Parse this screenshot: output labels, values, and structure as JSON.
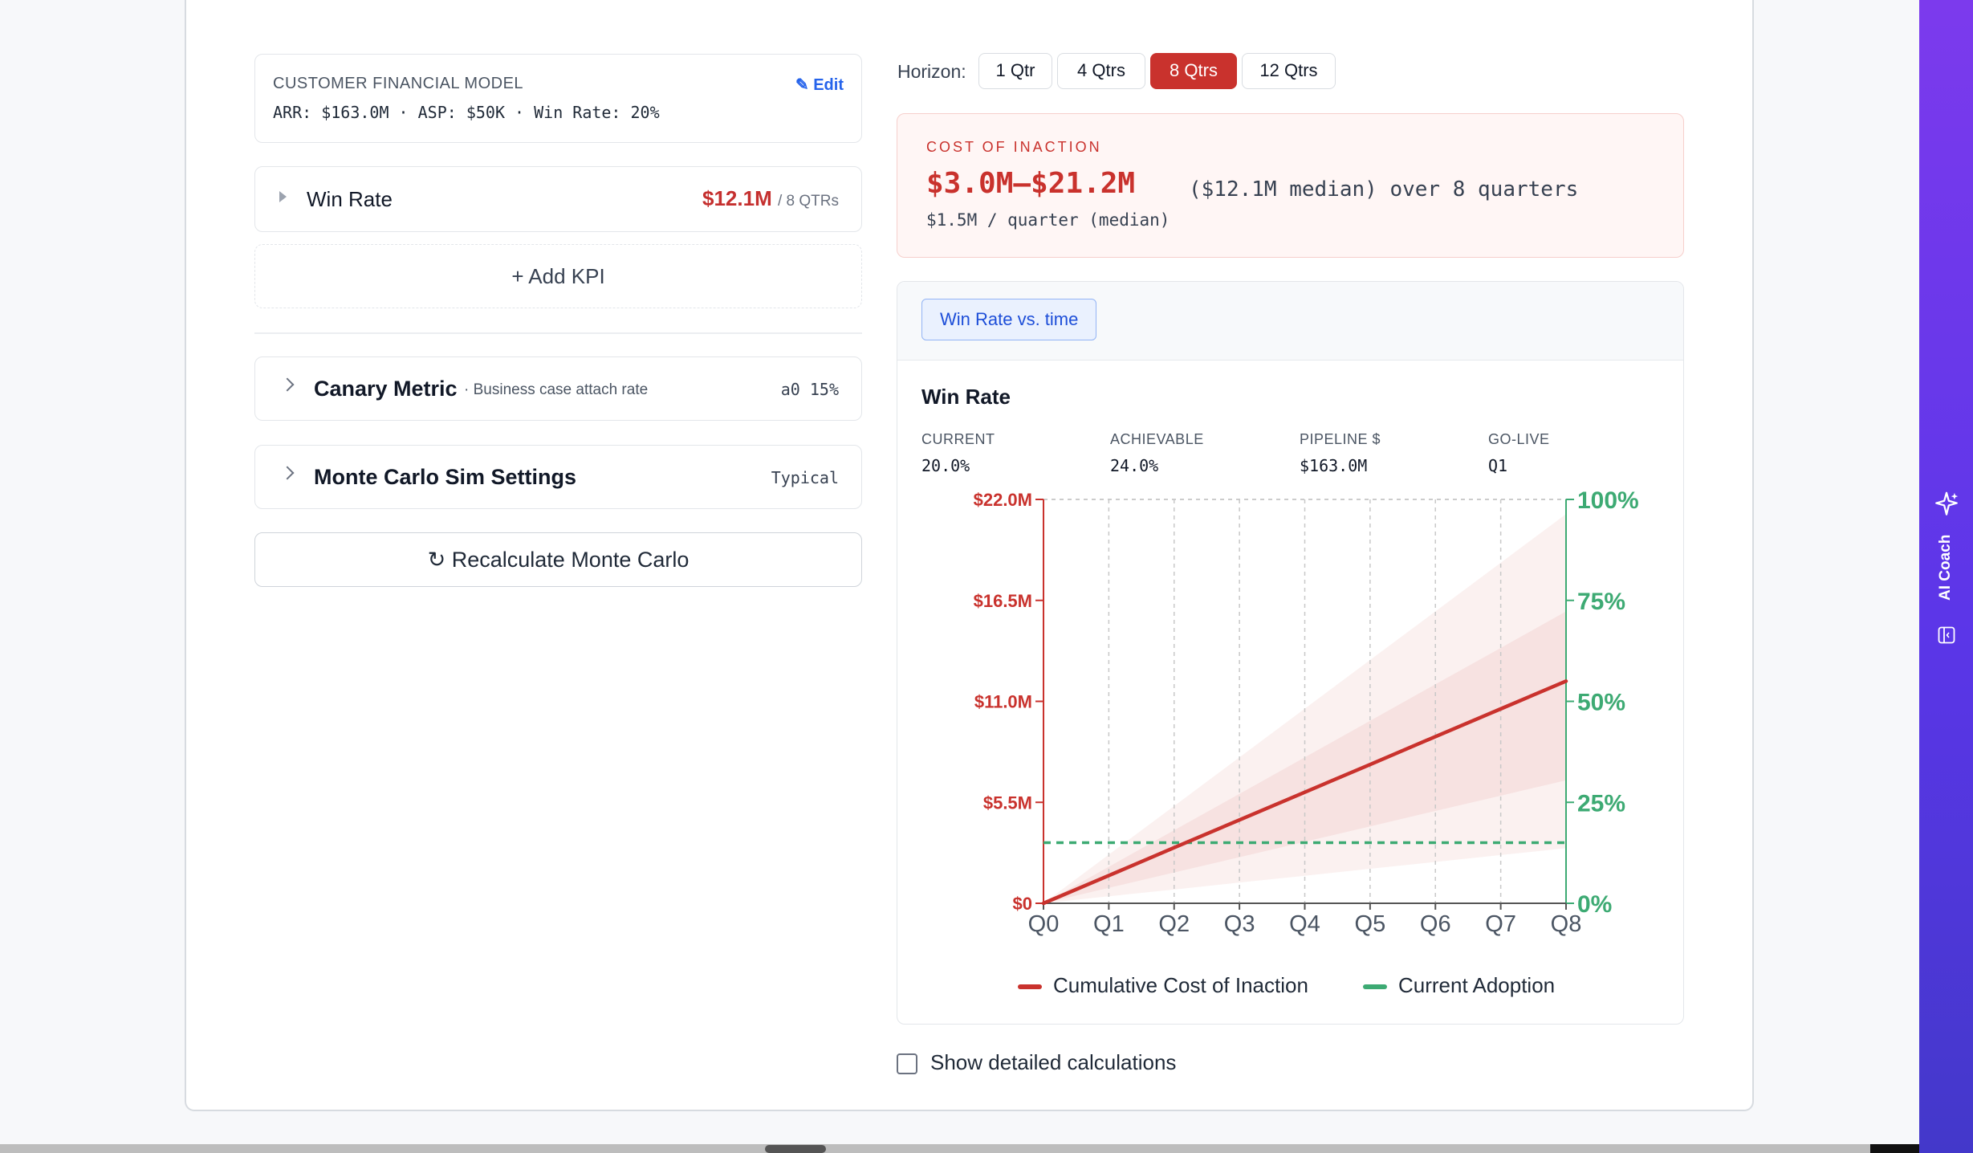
{
  "financial_model": {
    "title": "CUSTOMER FINANCIAL MODEL",
    "edit_label": "✎ Edit",
    "summary": "ARR: $163.0M · ASP: $50K · Win Rate: 20%"
  },
  "kpi": {
    "name": "Win Rate",
    "value": "$12.1M",
    "period": "/ 8 QTRs"
  },
  "add_kpi_label": "+ Add KPI",
  "canary": {
    "title": "Canary Metric",
    "subtitle": "· Business case attach rate",
    "value": "a0 15%"
  },
  "monte_carlo": {
    "title": "Monte Carlo Sim Settings",
    "value": "Typical"
  },
  "recalc_label": "↻ Recalculate Monte Carlo",
  "horizon": {
    "label": "Horizon:",
    "options": [
      "1 Qtr",
      "4 Qtrs",
      "8 Qtrs",
      "12 Qtrs"
    ],
    "selected": "8 Qtrs"
  },
  "cost_of_inaction": {
    "label": "COST OF INACTION",
    "range": "$3.0M–$21.2M",
    "detail": "($12.1M median) over 8 quarters",
    "per_quarter": "$1.5M / quarter (median)"
  },
  "chart_panel": {
    "tab_label": "Win Rate vs. time",
    "title": "Win Rate",
    "stats": [
      {
        "label": "CURRENT",
        "value": "20.0%"
      },
      {
        "label": "ACHIEVABLE",
        "value": "24.0%"
      },
      {
        "label": "PIPELINE $",
        "value": "$163.0M"
      },
      {
        "label": "GO-LIVE",
        "value": "Q1"
      }
    ]
  },
  "chart_data": {
    "type": "line",
    "x": [
      "Q0",
      "Q1",
      "Q2",
      "Q3",
      "Q4",
      "Q5",
      "Q6",
      "Q7",
      "Q8"
    ],
    "y_left_ticks": [
      "$0",
      "$5.5M",
      "$11.0M",
      "$16.5M",
      "$22.0M"
    ],
    "y_left_range": [
      0,
      22.0
    ],
    "y_right_ticks": [
      "0%",
      "25%",
      "50%",
      "75%",
      "100%"
    ],
    "y_right_range": [
      0,
      100
    ],
    "series": [
      {
        "name": "Cumulative Cost of Inaction",
        "axis": "left",
        "values": [
          0,
          1.51,
          3.03,
          4.54,
          6.05,
          7.56,
          9.08,
          10.59,
          12.1
        ],
        "p10": [
          0,
          0.38,
          0.75,
          1.13,
          1.5,
          1.88,
          2.25,
          2.63,
          3.0
        ],
        "p25": [
          0,
          0.84,
          1.68,
          2.51,
          3.35,
          4.19,
          5.03,
          5.86,
          6.7
        ],
        "p75": [
          0,
          1.99,
          3.98,
          5.96,
          7.95,
          9.94,
          11.93,
          13.91,
          15.9
        ],
        "p90": [
          0,
          2.65,
          5.3,
          7.95,
          10.6,
          13.25,
          15.9,
          18.55,
          21.2
        ],
        "color": "#c9322d"
      },
      {
        "name": "Current Adoption",
        "axis": "right",
        "values": [
          15,
          15,
          15,
          15,
          15,
          15,
          15,
          15,
          15
        ],
        "color": "#3daa73"
      }
    ]
  },
  "show_details_label": "Show detailed calculations",
  "ai_coach_label": "AI Coach",
  "colors": {
    "accent_red": "#c9322d",
    "accent_green": "#3daa73",
    "accent_blue": "#2563eb",
    "sidebar": "#6d3ae8"
  }
}
